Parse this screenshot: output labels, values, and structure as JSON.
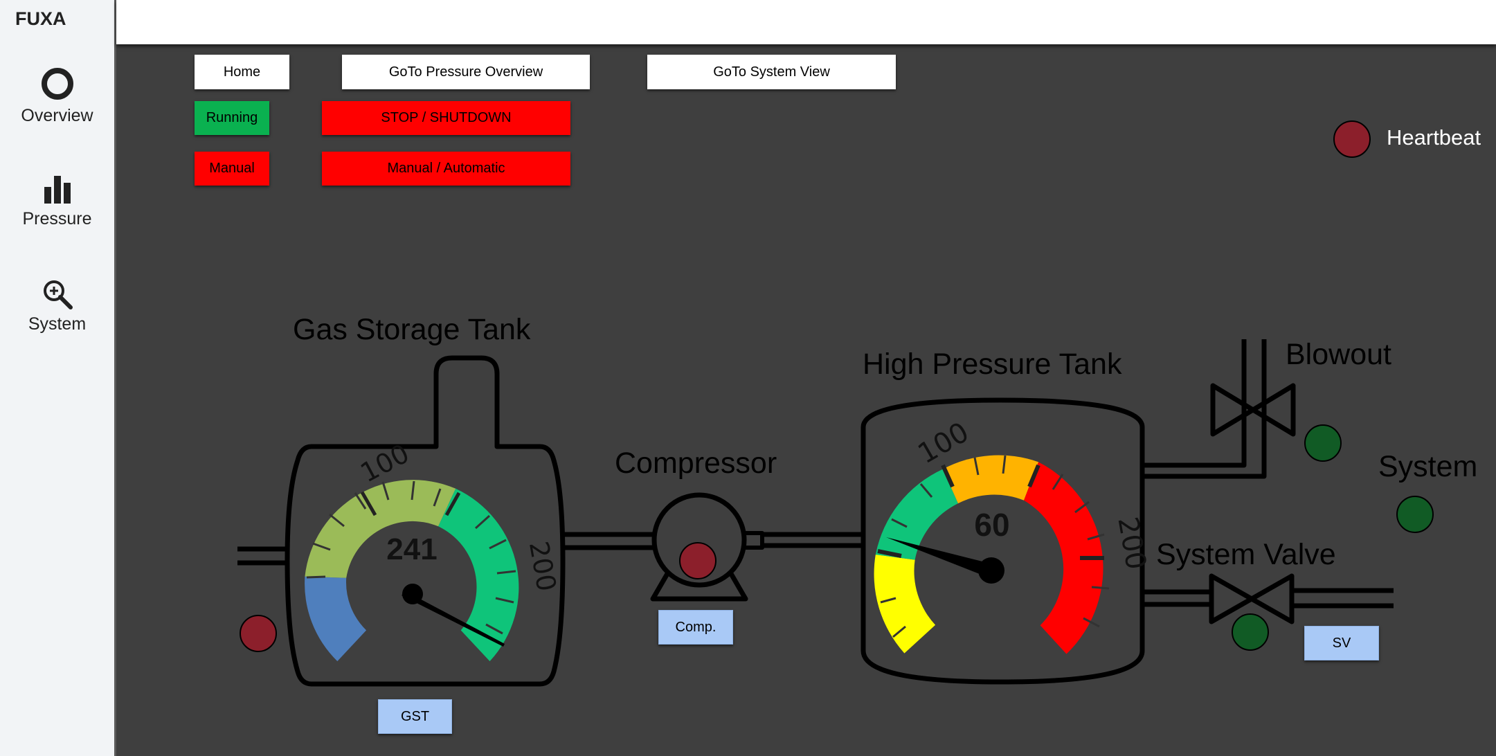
{
  "app": {
    "title": "FUXA"
  },
  "sidebar": {
    "items": [
      {
        "label": "Overview",
        "icon": "circle-icon"
      },
      {
        "label": "Pressure",
        "icon": "bar-chart-icon"
      },
      {
        "label": "System",
        "icon": "zoom-in-icon"
      }
    ]
  },
  "buttons": {
    "home": "Home",
    "goto_pressure": "GoTo Pressure Overview",
    "goto_system": "GoTo System View",
    "running": "Running",
    "stop": "STOP / SHUTDOWN",
    "manual": "Manual",
    "manual_auto": "Manual / Automatic",
    "gst": "GST",
    "comp": "Comp.",
    "sv": "SV"
  },
  "labels": {
    "heartbeat": "Heartbeat",
    "gas_storage_tank": "Gas Storage Tank",
    "compressor": "Compressor",
    "high_pressure_tank": "High Pressure Tank",
    "blowout": "Blowout",
    "system": "System",
    "system_valve": "System Valve"
  },
  "gauges": {
    "gas_storage": {
      "value": "241",
      "tick_100": "100",
      "tick_200": "200"
    },
    "high_pressure": {
      "value": "60",
      "tick_100": "100",
      "tick_200": "200"
    }
  },
  "indicators": {
    "heartbeat": "red",
    "gas_storage": "red",
    "compressor": "red",
    "blowout": "green",
    "system": "green",
    "system_valve": "green"
  },
  "colors": {
    "running": "#0ab150",
    "alarm_red": "#ff0000",
    "indicator_red": "#8c1f2b",
    "indicator_green": "#115b25",
    "blue_button": "#a9c9f6",
    "gauge_blue": "#4f7fbd",
    "gauge_olive": "#9bbb58",
    "gauge_green": "#0fc47a",
    "gauge_yellow": "#ffff00",
    "gauge_orange": "#ffb300",
    "gauge_red": "#ff0000"
  }
}
